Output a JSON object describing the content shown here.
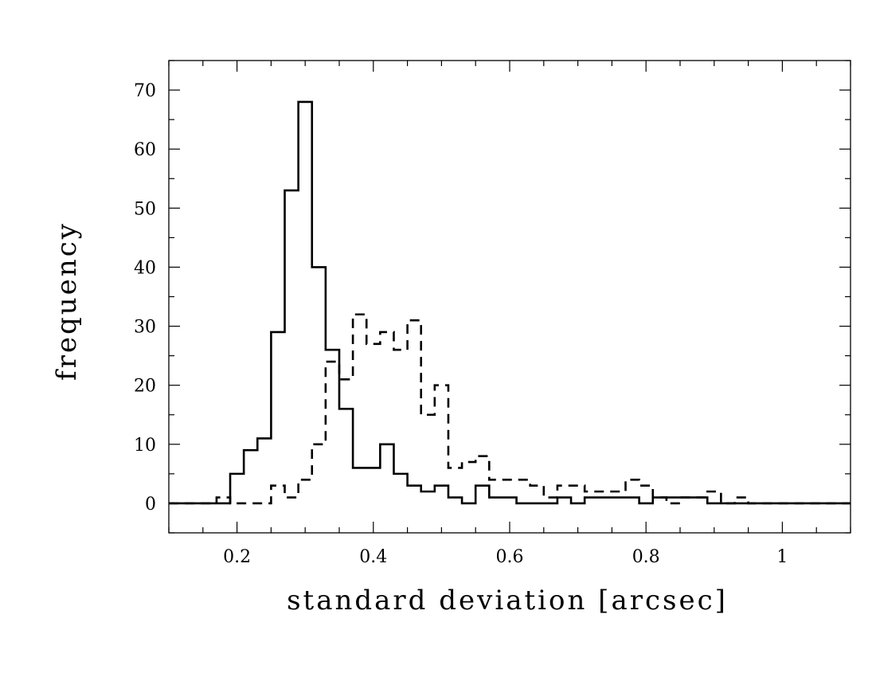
{
  "chart_data": {
    "type": "histogram",
    "title": "",
    "xlabel": "standard deviation [arcsec]",
    "ylabel": "frequency",
    "xlim": [
      0.1,
      1.1
    ],
    "ylim": [
      -5,
      75
    ],
    "x_ticks": [
      0.2,
      0.4,
      0.6,
      0.8,
      1
    ],
    "x_tick_labels": [
      "0.2",
      "0.4",
      "0.6",
      "0.8",
      "1"
    ],
    "y_ticks": [
      0,
      10,
      20,
      30,
      40,
      50,
      60,
      70
    ],
    "y_tick_labels": [
      "0",
      "10",
      "20",
      "30",
      "40",
      "50",
      "60",
      "70"
    ],
    "grid": false,
    "bin_edges": [
      0.17,
      0.19,
      0.21,
      0.23,
      0.25,
      0.27,
      0.29,
      0.31,
      0.33,
      0.35,
      0.37,
      0.39,
      0.41,
      0.43,
      0.45,
      0.47,
      0.49,
      0.51,
      0.53,
      0.55,
      0.57,
      0.59,
      0.61,
      0.63,
      0.65,
      0.67,
      0.69,
      0.71,
      0.73,
      0.75,
      0.77,
      0.79,
      0.81,
      0.83,
      0.85,
      0.87,
      0.89,
      0.91,
      0.93,
      0.95
    ],
    "series": [
      {
        "style": "solid",
        "color": "#000000",
        "values": [
          0,
          5,
          9,
          11,
          29,
          53,
          68,
          40,
          26,
          16,
          6,
          6,
          10,
          5,
          3,
          2,
          3,
          1,
          0,
          3,
          1,
          1,
          0,
          0,
          0,
          1,
          0,
          1,
          1,
          1,
          1,
          0,
          1,
          1,
          1,
          1,
          0,
          0,
          0
        ]
      },
      {
        "style": "dashed",
        "color": "#000000",
        "values": [
          1,
          0,
          0,
          0,
          3,
          1,
          4,
          10,
          24,
          21,
          32,
          27,
          29,
          26,
          31,
          15,
          20,
          6,
          7,
          8,
          4,
          4,
          4,
          3,
          1,
          3,
          3,
          2,
          2,
          2,
          4,
          3,
          1,
          0,
          1,
          1,
          2,
          0,
          1
        ]
      }
    ]
  }
}
